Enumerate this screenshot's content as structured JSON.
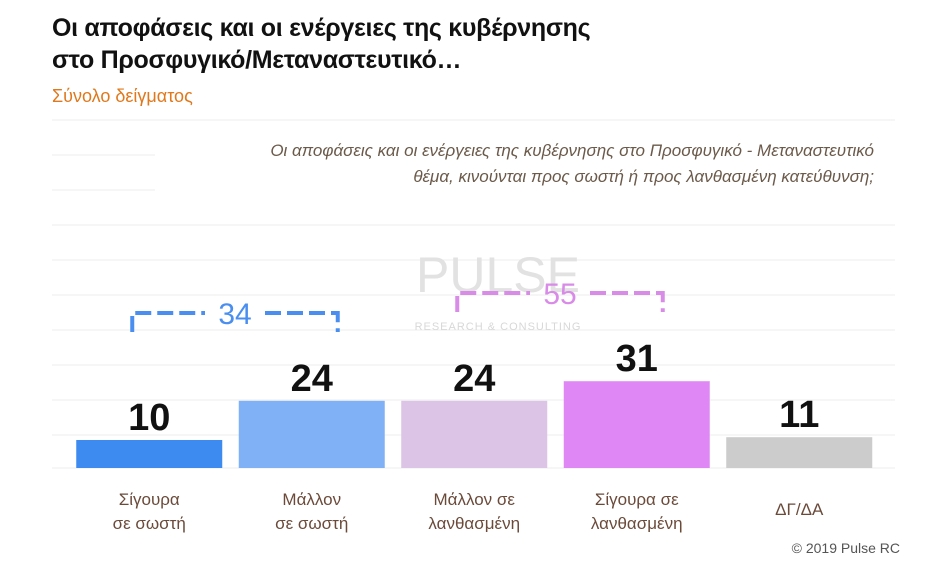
{
  "chart_data": {
    "type": "bar",
    "title": "Οι αποφάσεις και οι ενέργειες της κυβέρνησης\nστο Προσφυγικό/Μεταναστευτικό…",
    "subtitle": "Σύνολο δείγματος",
    "question": "Οι αποφάσεις και οι ενέργειες της κυβέρνησης στο Προσφυγικό - Μεταναστευτικό\nθέμα, κινούνται προς σωστή ή προς λανθασμένη κατεύθυνση;",
    "categories": [
      "Σίγουρα\nσε σωστή",
      "Μάλλον\nσε σωστή",
      "Μάλλον σε\nλανθασμένη",
      "Σίγουρα σε\nλανθασμένη",
      "ΔΓ/ΔΑ"
    ],
    "values": [
      10,
      24,
      24,
      31,
      11
    ],
    "colors": [
      "#3d8af0",
      "#80b1f6",
      "#dcc4e6",
      "#df88f5",
      "#cccccc"
    ],
    "annotations": [
      {
        "text": 34,
        "color": "#4a8ff0"
      },
      {
        "text": 55,
        "color": "#d98be8"
      }
    ],
    "watermark": [
      "PULSE",
      "RESEARCH & CONSULTING"
    ],
    "source": "© 2019 Pulse RC"
  }
}
